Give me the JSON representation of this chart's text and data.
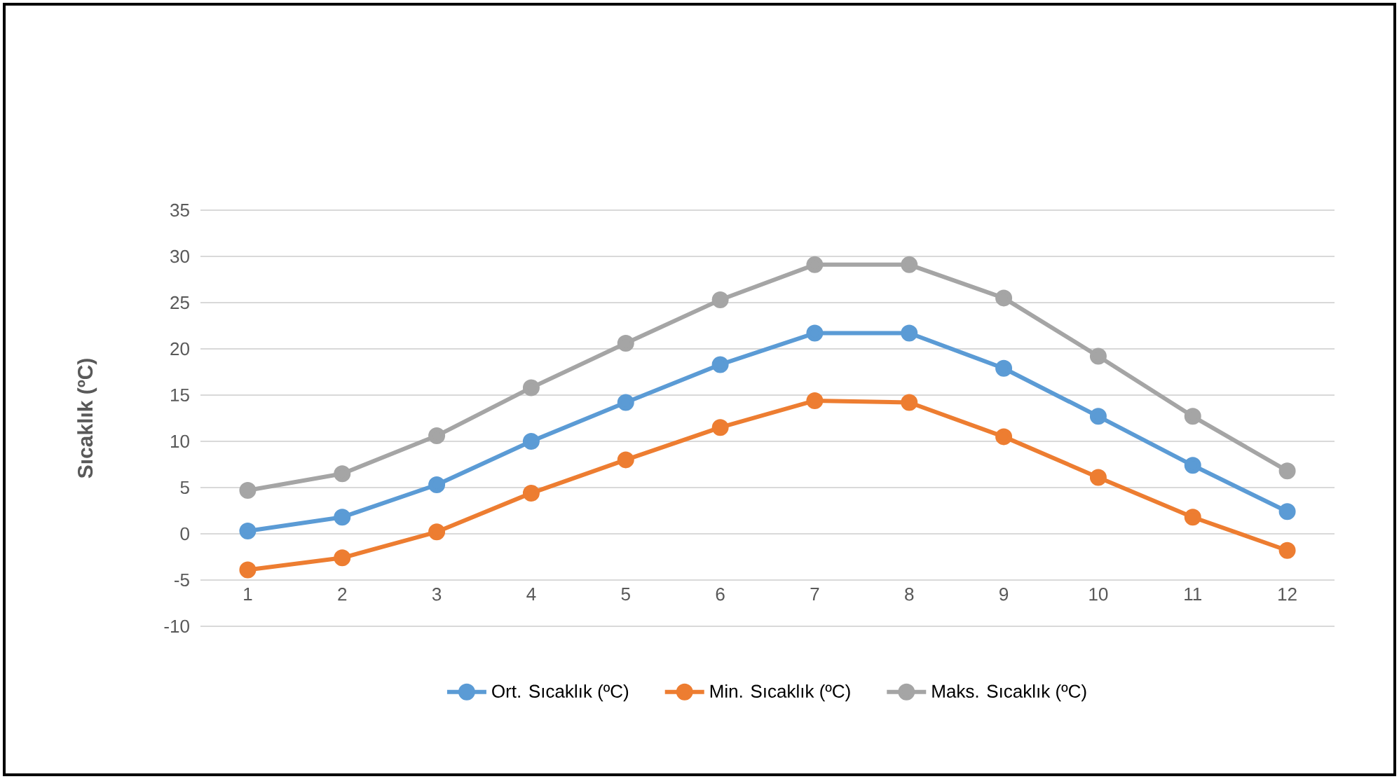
{
  "chart_data": {
    "type": "line",
    "ylabel": "Sıcaklık (ºC)",
    "categories": [
      "1",
      "2",
      "3",
      "4",
      "5",
      "6",
      "7",
      "8",
      "9",
      "10",
      "11",
      "12"
    ],
    "series": [
      {
        "name": "Ort. Sıcaklık (ºC)",
        "color": "#5b9bd5",
        "values": [
          0.3,
          1.8,
          5.3,
          10.0,
          14.2,
          18.3,
          21.7,
          21.7,
          17.9,
          12.7,
          7.4,
          2.4
        ]
      },
      {
        "name": "Min. Sıcaklık (ºC)",
        "color": "#ed7d31",
        "values": [
          -3.9,
          -2.6,
          0.2,
          4.4,
          8.0,
          11.5,
          14.4,
          14.2,
          10.5,
          6.1,
          1.8,
          -1.8
        ]
      },
      {
        "name": "Maks. Sıcaklık (ºC)",
        "color": "#a5a5a5",
        "values": [
          4.7,
          6.5,
          10.6,
          15.8,
          20.6,
          25.3,
          29.1,
          29.1,
          25.5,
          19.2,
          12.7,
          6.8
        ]
      }
    ],
    "ylim": [
      -10,
      35
    ],
    "yticks": [
      -10,
      -5,
      0,
      5,
      10,
      15,
      20,
      25,
      30,
      35
    ],
    "grid": "y",
    "legend": "bottom",
    "marker": "circle",
    "line_style": "solid"
  }
}
